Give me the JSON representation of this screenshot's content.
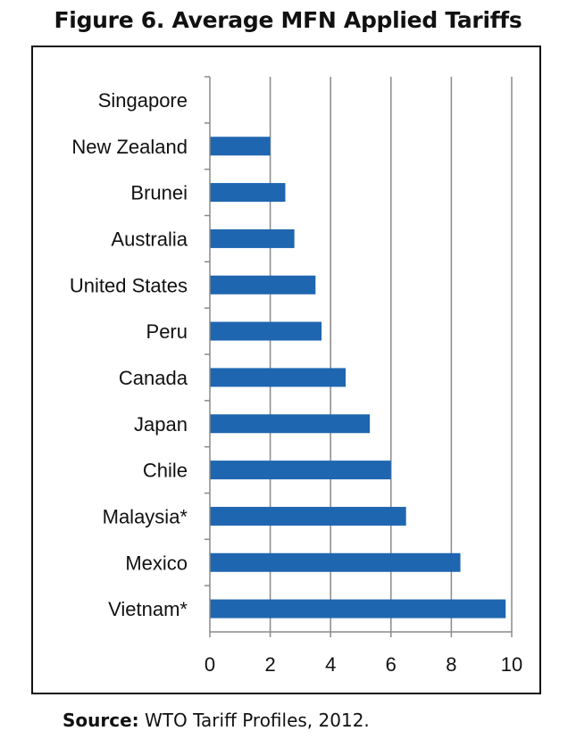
{
  "figure_title": "Figure 6. Average MFN Applied Tariffs",
  "source": {
    "label": "Source:",
    "text": "WTO Tariff Profiles, 2012."
  },
  "colors": {
    "bar": "#1f66b0",
    "gridline": "#8a8a8a",
    "axis": "#8a8a8a",
    "text": "#111111",
    "frame": "#111111"
  },
  "chart_data": {
    "type": "bar",
    "orientation": "horizontal",
    "title": "",
    "xlabel": "",
    "ylabel": "",
    "categories": [
      "Singapore",
      "New Zealand",
      "Brunei",
      "Australia",
      "United States",
      "Peru",
      "Canada",
      "Japan",
      "Chile",
      "Malaysia*",
      "Mexico",
      "Vietnam*"
    ],
    "values": [
      0,
      2.0,
      2.5,
      2.8,
      3.5,
      3.7,
      4.5,
      5.3,
      6.0,
      6.5,
      8.3,
      9.8
    ],
    "xlim": [
      0,
      10
    ],
    "xticks": [
      "0",
      "2",
      "4",
      "6",
      "8",
      "10"
    ],
    "grid": "vertical",
    "legend": "none"
  }
}
